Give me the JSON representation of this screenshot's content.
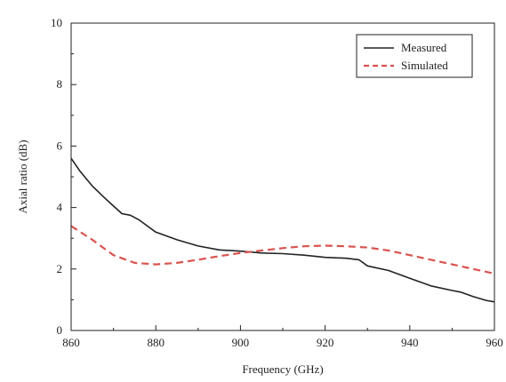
{
  "chart_data": {
    "type": "line",
    "xlabel": "Frequency (GHz)",
    "ylabel": "Axial ratio (dB)",
    "xlim": [
      860,
      960
    ],
    "ylim": [
      0,
      10
    ],
    "xticks": [
      860,
      880,
      900,
      920,
      940,
      960
    ],
    "yticks": [
      0,
      2,
      4,
      6,
      8,
      10
    ],
    "x_tick_labels": [
      "860",
      "880",
      "900",
      "920",
      "940",
      "960"
    ],
    "y_tick_labels": [
      "0",
      "2",
      "4",
      "6",
      "8",
      "10"
    ],
    "legend_position": "top-right",
    "series": [
      {
        "name": "Measured",
        "style": "solid",
        "color": "#222222",
        "x": [
          860,
          862,
          865,
          868,
          870,
          872,
          874,
          876,
          878,
          880,
          885,
          890,
          895,
          900,
          905,
          910,
          915,
          920,
          925,
          928,
          930,
          935,
          940,
          945,
          950,
          952,
          955,
          958,
          960
        ],
        "y": [
          5.6,
          5.2,
          4.7,
          4.3,
          4.05,
          3.8,
          3.75,
          3.6,
          3.4,
          3.2,
          2.95,
          2.75,
          2.62,
          2.58,
          2.52,
          2.5,
          2.45,
          2.38,
          2.35,
          2.3,
          2.1,
          1.95,
          1.7,
          1.45,
          1.3,
          1.25,
          1.1,
          0.98,
          0.93
        ]
      },
      {
        "name": "Simulated",
        "style": "dashed",
        "color": "#d9534f",
        "x": [
          860,
          865,
          870,
          875,
          880,
          885,
          890,
          895,
          900,
          905,
          910,
          915,
          920,
          925,
          930,
          935,
          940,
          945,
          950,
          955,
          960
        ],
        "y": [
          3.4,
          2.95,
          2.45,
          2.2,
          2.15,
          2.2,
          2.3,
          2.42,
          2.52,
          2.6,
          2.68,
          2.74,
          2.76,
          2.74,
          2.7,
          2.6,
          2.45,
          2.3,
          2.15,
          2.0,
          1.85
        ]
      }
    ]
  }
}
